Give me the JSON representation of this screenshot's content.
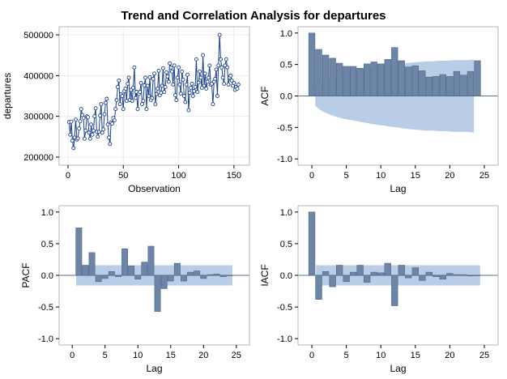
{
  "figure_title": "Trend and Correlation Analysis for departures",
  "colors": {
    "bar_fill": "#6d86a7",
    "bar_edge": "#4c6585",
    "band": "#b9cde6",
    "series_line": "#1a3f8f",
    "marker": "#1a3f8f",
    "grid": "#ebebeb",
    "frame": "#b5b5b5"
  },
  "chart_data": [
    {
      "type": "line",
      "xlabel": "Observation",
      "ylabel": "departures",
      "xlim": [
        -8,
        164
      ],
      "ylim": [
        180000,
        520000
      ],
      "xticks": [
        0,
        50,
        100,
        150
      ],
      "yticks": [
        200000,
        300000,
        400000,
        500000
      ],
      "ytick_labels": [
        "200000",
        "300000",
        "400000",
        "500000"
      ],
      "grid": true,
      "markers": "open-circle",
      "x": [
        1,
        2,
        3,
        4,
        5,
        6,
        7,
        8,
        9,
        10,
        11,
        12,
        13,
        14,
        15,
        16,
        17,
        18,
        19,
        20,
        21,
        22,
        23,
        24,
        25,
        26,
        27,
        28,
        29,
        30,
        31,
        32,
        33,
        34,
        35,
        36,
        37,
        38,
        39,
        40,
        41,
        42,
        43,
        44,
        45,
        46,
        47,
        48,
        49,
        50,
        51,
        52,
        53,
        54,
        55,
        56,
        57,
        58,
        59,
        60,
        61,
        62,
        63,
        64,
        65,
        66,
        67,
        68,
        69,
        70,
        71,
        72,
        73,
        74,
        75,
        76,
        77,
        78,
        79,
        80,
        81,
        82,
        83,
        84,
        85,
        86,
        87,
        88,
        89,
        90,
        91,
        92,
        93,
        94,
        95,
        96,
        97,
        98,
        99,
        100,
        101,
        102,
        103,
        104,
        105,
        106,
        107,
        108,
        109,
        110,
        111,
        112,
        113,
        114,
        115,
        116,
        117,
        118,
        119,
        120,
        121,
        122,
        123,
        124,
        125,
        126,
        127,
        128,
        129,
        130,
        131,
        132,
        133,
        134,
        135,
        136,
        137,
        138,
        139,
        140,
        141,
        142,
        143,
        144,
        145,
        146,
        147,
        148,
        149,
        150,
        151,
        152,
        153,
        154
      ],
      "y": [
        286000,
        255000,
        287000,
        240000,
        222000,
        248000,
        292000,
        243000,
        246000,
        270000,
        288000,
        318000,
        303000,
        296000,
        245000,
        265000,
        300000,
        298000,
        260000,
        245000,
        280000,
        255000,
        265000,
        300000,
        320000,
        262000,
        250000,
        262000,
        302000,
        330000,
        260000,
        268000,
        305000,
        333000,
        343000,
        280000,
        248000,
        232000,
        285000,
        282000,
        296000,
        290000,
        318000,
        340000,
        372000,
        388000,
        330000,
        354000,
        350000,
        318000,
        362000,
        368000,
        338000,
        380000,
        395000,
        340000,
        365000,
        338000,
        370000,
        420000,
        345000,
        360000,
        318000,
        355000,
        360000,
        382000,
        330000,
        338000,
        376000,
        395000,
        318000,
        375000,
        350000,
        396000,
        340000,
        345000,
        392000,
        405000,
        330000,
        355000,
        368000,
        412000,
        352000,
        358000,
        375000,
        418000,
        360000,
        372000,
        408000,
        398000,
        385000,
        430000,
        420000,
        410000,
        378000,
        425000,
        352000,
        340000,
        395000,
        420000,
        378000,
        356000,
        410000,
        390000,
        350000,
        335000,
        378000,
        402000,
        315000,
        358000,
        370000,
        380000,
        350000,
        362000,
        372000,
        440000,
        360000,
        383000,
        410000,
        395000,
        370000,
        450000,
        375000,
        405000,
        368000,
        385000,
        395000,
        425000,
        378000,
        380000,
        330000,
        385000,
        392000,
        415000,
        350000,
        425000,
        500000,
        440000,
        420000,
        395000,
        380000,
        425000,
        440000,
        420000,
        378000,
        395000,
        400000,
        388000,
        375000,
        382000,
        365000,
        372000,
        368000,
        378000
      ]
    },
    {
      "type": "bar",
      "subtype": "acf",
      "xlabel": "Lag",
      "ylabel": "ACF",
      "xlim": [
        -2,
        27
      ],
      "ylim": [
        -1.1,
        1.1
      ],
      "xticks": [
        0,
        5,
        10,
        15,
        20,
        25
      ],
      "yticks": [
        -1.0,
        -0.5,
        0.0,
        0.5,
        1.0
      ],
      "ytick_labels": [
        "-1.0",
        "-0.5",
        "0.0",
        "0.5",
        "1.0"
      ],
      "lags": [
        0,
        1,
        2,
        3,
        4,
        5,
        6,
        7,
        8,
        9,
        10,
        11,
        12,
        13,
        14,
        15,
        16,
        17,
        18,
        19,
        20,
        21,
        22,
        23,
        24
      ],
      "values": [
        1.0,
        0.74,
        0.65,
        0.6,
        0.52,
        0.47,
        0.47,
        0.44,
        0.51,
        0.54,
        0.51,
        0.58,
        0.77,
        0.56,
        0.46,
        0.48,
        0.4,
        0.3,
        0.31,
        0.34,
        0.31,
        0.39,
        0.33,
        0.39,
        0.56
      ],
      "confidence_band": [
        0.16,
        0.24,
        0.29,
        0.33,
        0.36,
        0.38,
        0.4,
        0.42,
        0.44,
        0.46,
        0.47,
        0.49,
        0.5,
        0.52,
        0.53,
        0.54,
        0.55,
        0.55,
        0.56,
        0.56,
        0.57,
        0.57,
        0.57,
        0.58
      ]
    },
    {
      "type": "bar",
      "subtype": "pacf",
      "xlabel": "Lag",
      "ylabel": "PACF",
      "xlim": [
        -2,
        27
      ],
      "ylim": [
        -1.1,
        1.1
      ],
      "xticks": [
        0,
        5,
        10,
        15,
        20,
        25
      ],
      "yticks": [
        -1.0,
        -0.5,
        0.0,
        0.5,
        1.0
      ],
      "ytick_labels": [
        "-1.0",
        "-0.5",
        "0.0",
        "0.5",
        "1.0"
      ],
      "lags": [
        1,
        2,
        3,
        4,
        5,
        6,
        7,
        8,
        9,
        10,
        11,
        12,
        13,
        14,
        15,
        16,
        17,
        18,
        19,
        20,
        21,
        22,
        23,
        24
      ],
      "values": [
        0.75,
        0.16,
        0.36,
        -0.1,
        -0.05,
        0.06,
        -0.02,
        0.42,
        0.15,
        -0.06,
        0.21,
        0.46,
        -0.57,
        -0.21,
        -0.09,
        0.19,
        -0.09,
        0.05,
        0.07,
        -0.05,
        0.01,
        0.02,
        -0.02,
        0.0
      ],
      "confidence_band": 0.16
    },
    {
      "type": "bar",
      "subtype": "iacf",
      "xlabel": "Lag",
      "ylabel": "IACF",
      "xlim": [
        -2,
        27
      ],
      "ylim": [
        -1.1,
        1.1
      ],
      "xticks": [
        0,
        5,
        10,
        15,
        20,
        25
      ],
      "yticks": [
        -1.0,
        -0.5,
        0.0,
        0.5,
        1.0
      ],
      "ytick_labels": [
        "-1.0",
        "-0.5",
        "0.0",
        "0.5",
        "1.0"
      ],
      "lags": [
        0,
        1,
        2,
        3,
        4,
        5,
        6,
        7,
        8,
        9,
        10,
        11,
        12,
        13,
        14,
        15,
        16,
        17,
        18,
        19,
        20,
        21,
        22,
        23,
        24
      ],
      "values": [
        1.0,
        -0.38,
        0.06,
        -0.18,
        0.16,
        -0.1,
        0.05,
        0.16,
        -0.11,
        0.05,
        0.04,
        0.19,
        -0.48,
        0.16,
        -0.04,
        0.12,
        -0.08,
        0.05,
        -0.02,
        -0.06,
        0.03,
        0.01,
        0.01,
        -0.01,
        0.0
      ],
      "confidence_band": 0.16
    }
  ]
}
